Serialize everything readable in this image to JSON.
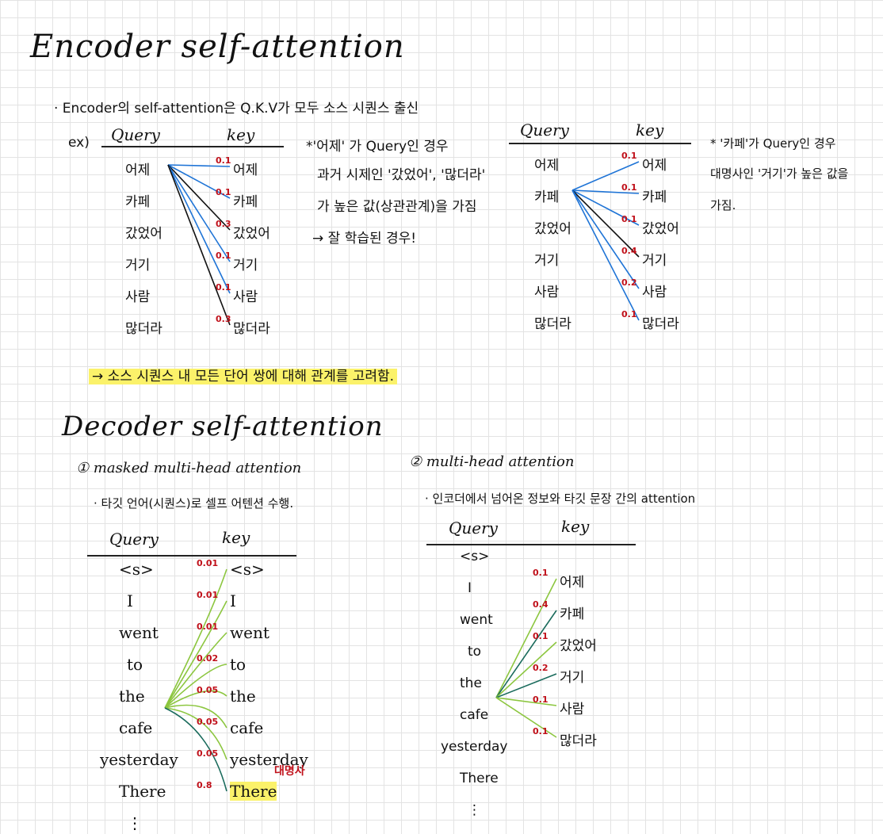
{
  "encoder": {
    "title": "Encoder self-attention",
    "bullet": "· Encoder의 self-attention은 Q.K.V가 모두 소스 시퀀스 출신",
    "ex": "ex)",
    "left": {
      "query_header": "Query",
      "key_header": "key",
      "queries": [
        "어제",
        "카페",
        "갔었어",
        "거기",
        "사람",
        "많더라"
      ],
      "keys": [
        "어제",
        "카페",
        "갔었어",
        "거기",
        "사람",
        "많더라"
      ],
      "weights": [
        "0.1",
        "0.1",
        "0.3",
        "0.1",
        "0.1",
        "0.3"
      ]
    },
    "left_note": [
      "*'어제' 가 Query인 경우",
      "과거 시제인 '갔었어', '많더라'",
      "가 높은 값(상관관계)을 가짐",
      "→ 잘 학습된 경우!"
    ],
    "right": {
      "query_header": "Query",
      "key_header": "key",
      "queries": [
        "어제",
        "카페",
        "갔었어",
        "거기",
        "사람",
        "많더라"
      ],
      "keys": [
        "어제",
        "카페",
        "갔었어",
        "거기",
        "사람",
        "많더라"
      ],
      "weights": [
        "0.1",
        "0.1",
        "0.1",
        "0.4",
        "0.2",
        "0.1"
      ]
    },
    "right_note": [
      "* '카페'가 Query인 경우",
      "대명사인 '거기'가 높은 값을",
      "가짐."
    ],
    "summary": "→ 소스 시퀀스 내 모든 단어 쌍에 대해 관계를 고려함."
  },
  "decoder": {
    "title": "Decoder self-attention",
    "masked": {
      "heading": "① masked multi-head attention",
      "bullet": "· 타깃 언어(시퀀스)로 셀프 어텐션 수행.",
      "query_header": "Query",
      "key_header": "key",
      "queries": [
        "<s>",
        "I",
        "went",
        "to",
        "the",
        "cafe",
        "yesterday",
        "There",
        "⋮"
      ],
      "keys": [
        "<s>",
        "I",
        "went",
        "to",
        "the",
        "cafe",
        "yesterday",
        "There"
      ],
      "weights": [
        "0.01",
        "0.01",
        "0.01",
        "0.02",
        "0.05",
        "0.05",
        "0.05",
        "0.8"
      ],
      "pronoun_tag": "대명사"
    },
    "multi": {
      "heading": "② multi-head attention",
      "bullet": "· 인코더에서 넘어온 정보와 타깃 문장 간의 attention",
      "query_header": "Query",
      "key_header": "key",
      "queries": [
        "<s>",
        "I",
        "went",
        "to",
        "the",
        "cafe",
        "yesterday",
        "There",
        "⋮"
      ],
      "keys": [
        "어제",
        "카페",
        "갔었어",
        "거기",
        "사람",
        "많더라"
      ],
      "weights": [
        "0.1",
        "0.4",
        "0.1",
        "0.2",
        "0.1",
        "0.1"
      ]
    }
  },
  "colors": {
    "blue": "#1f74d6",
    "black": "#111111",
    "lime": "#8cc63f",
    "teal": "#1a6b5c",
    "red": "#c0101a",
    "highlight": "#fbf26a"
  }
}
